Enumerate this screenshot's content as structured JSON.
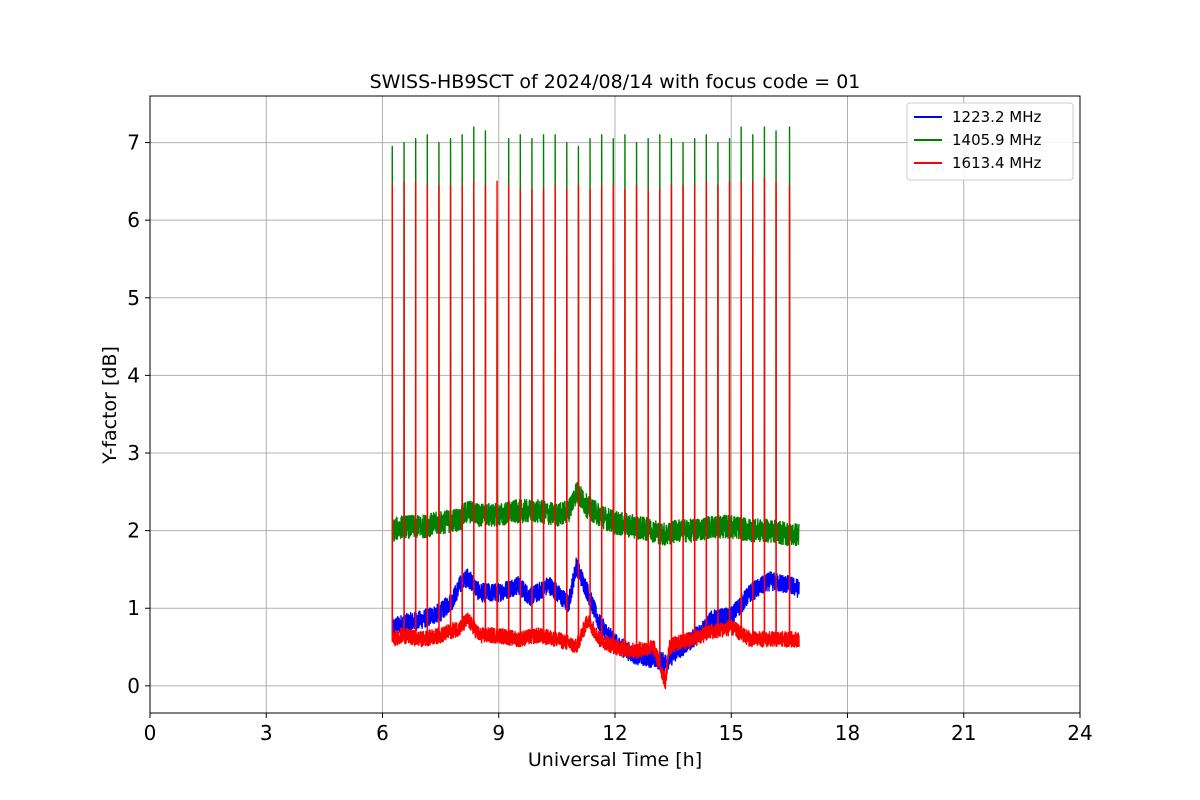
{
  "chart_data": {
    "type": "line",
    "title": "SWISS-HB9SCT of 2024/08/14 with focus code = 01",
    "xlabel": "Universal Time [h]",
    "ylabel": "Y-factor [dB]",
    "xlim": [
      0,
      24
    ],
    "ylim": [
      -0.35,
      7.6
    ],
    "xticks": [
      0,
      3,
      6,
      9,
      12,
      15,
      18,
      21,
      24
    ],
    "yticks": [
      0,
      1,
      2,
      3,
      4,
      5,
      6,
      7
    ],
    "grid": true,
    "legend_position": "top-right",
    "calibration_spikes_at_hours": [
      6.25,
      6.55,
      6.85,
      7.15,
      7.45,
      7.75,
      8.05,
      8.35,
      8.65,
      8.95,
      9.25,
      9.55,
      9.85,
      10.15,
      10.45,
      10.75,
      11.05,
      11.35,
      11.65,
      11.95,
      12.25,
      12.55,
      12.85,
      13.15,
      13.45,
      13.75,
      14.05,
      14.35,
      14.65,
      14.95,
      15.25,
      15.55,
      15.85,
      16.15,
      16.5
    ],
    "series": [
      {
        "name": "1223.2 MHz",
        "color": "#0000ff",
        "noise_amplitude": 0.12,
        "x": [
          6.25,
          6.5,
          7.0,
          7.5,
          7.8,
          8.0,
          8.2,
          8.5,
          9.0,
          9.5,
          9.8,
          10.0,
          10.3,
          10.5,
          10.8,
          11.0,
          11.3,
          11.6,
          12.0,
          12.5,
          13.0,
          13.3,
          13.6,
          14.0,
          14.5,
          15.0,
          15.5,
          16.0,
          16.5,
          16.75
        ],
        "y": [
          0.75,
          0.8,
          0.85,
          0.95,
          1.1,
          1.3,
          1.4,
          1.2,
          1.2,
          1.3,
          1.15,
          1.2,
          1.3,
          1.2,
          1.05,
          1.55,
          1.2,
          0.8,
          0.55,
          0.4,
          0.35,
          0.3,
          0.45,
          0.6,
          0.85,
          0.9,
          1.2,
          1.35,
          1.3,
          1.25
        ]
      },
      {
        "name": "1405.9 MHz",
        "color": "#008000",
        "noise_amplitude": 0.15,
        "spike_peaks": [
          6.95,
          7.0,
          7.05,
          7.1,
          7.0,
          7.05,
          7.1,
          7.2,
          7.15,
          6.0,
          7.05,
          7.1,
          7.05,
          7.1,
          7.1,
          7.0,
          6.95,
          7.05,
          7.1,
          7.05,
          7.1,
          7.0,
          7.05,
          7.1,
          7.05,
          7.0,
          7.05,
          7.1,
          7.0,
          7.05,
          7.2,
          7.1,
          7.2,
          7.15,
          7.2
        ],
        "x": [
          6.25,
          6.5,
          7.0,
          7.5,
          8.0,
          8.2,
          8.5,
          9.0,
          9.5,
          10.0,
          10.5,
          10.8,
          11.0,
          11.3,
          11.6,
          12.0,
          12.5,
          13.0,
          13.3,
          13.6,
          14.0,
          14.5,
          15.0,
          15.5,
          16.0,
          16.5,
          16.75
        ],
        "y": [
          2.0,
          2.05,
          2.05,
          2.1,
          2.15,
          2.25,
          2.2,
          2.2,
          2.25,
          2.25,
          2.2,
          2.25,
          2.5,
          2.3,
          2.2,
          2.1,
          2.05,
          2.0,
          1.95,
          2.0,
          2.0,
          2.05,
          2.05,
          2.0,
          2.0,
          1.95,
          1.95
        ]
      },
      {
        "name": "1613.4 MHz",
        "color": "#ff0000",
        "noise_amplitude": 0.1,
        "spike_peaks": [
          6.45,
          6.5,
          6.5,
          6.45,
          6.45,
          6.45,
          6.45,
          6.5,
          6.45,
          6.5,
          6.45,
          6.4,
          6.4,
          6.4,
          6.45,
          6.4,
          6.45,
          6.4,
          6.45,
          6.45,
          6.4,
          6.45,
          6.4,
          6.4,
          6.45,
          6.45,
          6.45,
          6.5,
          6.45,
          6.5,
          6.5,
          6.5,
          6.55,
          6.5,
          6.45
        ],
        "x": [
          6.25,
          6.5,
          7.0,
          7.5,
          8.0,
          8.2,
          8.5,
          9.0,
          9.5,
          10.0,
          10.5,
          10.8,
          11.0,
          11.3,
          11.6,
          12.0,
          12.5,
          13.0,
          13.2,
          13.3,
          13.4,
          13.6,
          14.0,
          14.5,
          15.0,
          15.5,
          16.0,
          16.5,
          16.75
        ],
        "y": [
          0.6,
          0.65,
          0.6,
          0.65,
          0.75,
          0.85,
          0.65,
          0.65,
          0.6,
          0.65,
          0.6,
          0.55,
          0.5,
          0.85,
          0.6,
          0.5,
          0.45,
          0.5,
          0.2,
          0.05,
          0.5,
          0.55,
          0.6,
          0.7,
          0.75,
          0.6,
          0.6,
          0.6,
          0.6
        ]
      }
    ]
  }
}
